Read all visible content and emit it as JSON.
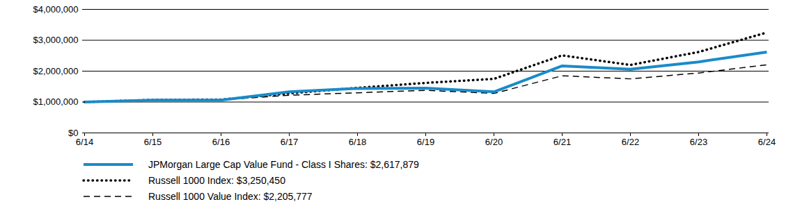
{
  "chart_data": {
    "type": "line",
    "x": [
      "6/14",
      "6/15",
      "6/16",
      "6/17",
      "6/18",
      "6/19",
      "6/20",
      "6/21",
      "6/22",
      "6/23",
      "6/24"
    ],
    "series": [
      {
        "name": "JPMorgan Large Cap Value Fund - Class I Shares: $2,617,879",
        "color": "#1a8bc9",
        "line_style": "solid",
        "values": [
          1000000,
          1060000,
          1060000,
          1330000,
          1440000,
          1450000,
          1330000,
          2170000,
          2060000,
          2300000,
          2617879
        ]
      },
      {
        "name": "Russell 1000 Index: $3,250,450",
        "color": "#000000",
        "line_style": "dotted",
        "values": [
          1000000,
          1070000,
          1080000,
          1280000,
          1460000,
          1620000,
          1750000,
          2510000,
          2200000,
          2620000,
          3250450
        ]
      },
      {
        "name": "Russell 1000 Value Index: $2,205,777",
        "color": "#000000",
        "line_style": "dashed",
        "values": [
          1000000,
          1040000,
          1070000,
          1220000,
          1300000,
          1380000,
          1280000,
          1850000,
          1750000,
          1940000,
          2205777
        ]
      }
    ],
    "ylim": [
      0,
      4000000
    ],
    "yticks": [
      {
        "value": 0,
        "label": "$0"
      },
      {
        "value": 1000000,
        "label": "$1,000,000"
      },
      {
        "value": 2000000,
        "label": "$2,000,000"
      },
      {
        "value": 3000000,
        "label": "$3,000,000"
      },
      {
        "value": 4000000,
        "label": "$4,000,000"
      }
    ],
    "grid": true,
    "legend": "bottom"
  }
}
